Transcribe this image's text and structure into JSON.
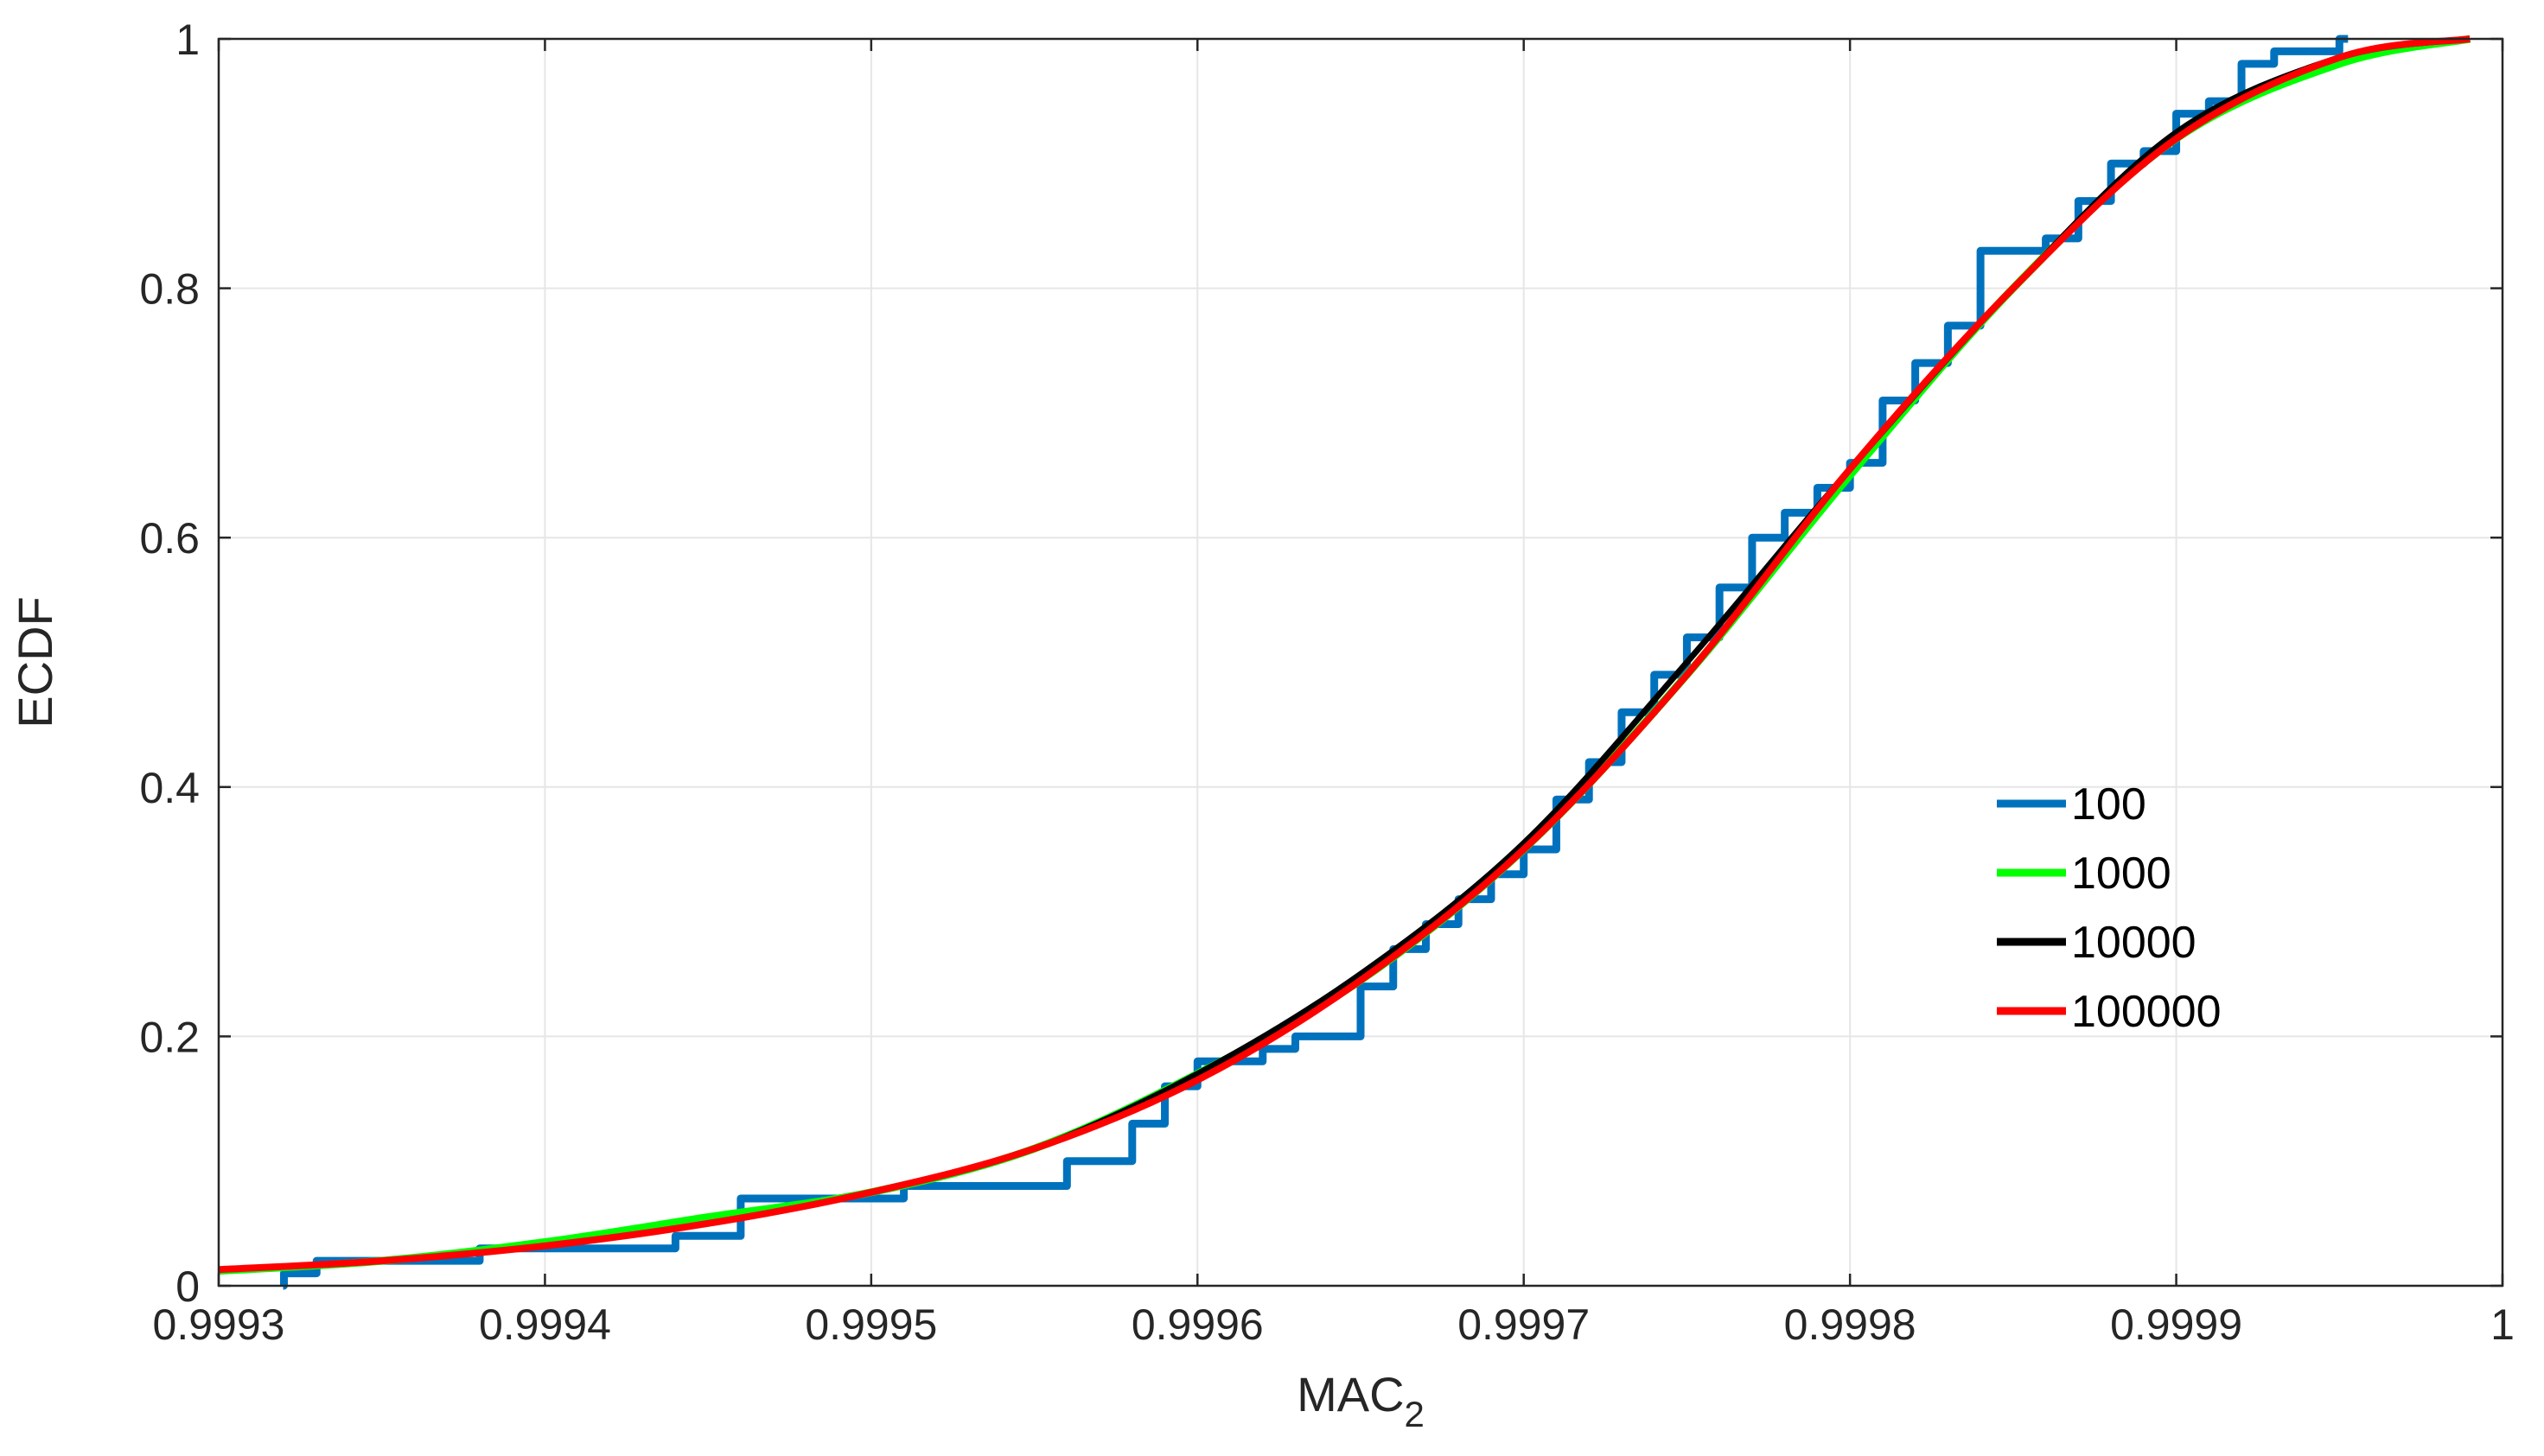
{
  "chart_data": {
    "type": "line",
    "title": "",
    "xlabel": "MAC",
    "xlabel_subscript": "2",
    "ylabel": "ECDF",
    "xlim": [
      0.9993,
      1.0
    ],
    "ylim": [
      0,
      1
    ],
    "grid": true,
    "legend_position": "center-right",
    "x_tick_labels": [
      "0.9993",
      "0.9994",
      "0.9995",
      "0.9996",
      "0.9997",
      "0.9998",
      "0.9999",
      "1"
    ],
    "x_ticks": [
      0.9993,
      0.9994,
      0.9995,
      0.9996,
      0.9997,
      0.9998,
      0.9999,
      1.0
    ],
    "y_tick_labels": [
      "0",
      "0.2",
      "0.4",
      "0.6",
      "0.8",
      "1"
    ],
    "y_ticks": [
      0,
      0.2,
      0.4,
      0.6,
      0.8,
      1.0
    ],
    "series": [
      {
        "name": "100",
        "color": "#0072BD",
        "step": true,
        "x": [
          0.99932,
          0.99933,
          0.99938,
          0.99944,
          0.99946,
          0.9995,
          0.99951,
          0.99956,
          0.99958,
          0.99959,
          0.9996,
          0.99962,
          0.99963,
          0.99965,
          0.99966,
          0.99967,
          0.99968,
          0.99969,
          0.9997,
          0.99971,
          0.99972,
          0.99973,
          0.99974,
          0.99975,
          0.99976,
          0.99977,
          0.99978,
          0.99979,
          0.9998,
          0.99981,
          0.99982,
          0.99983,
          0.99984,
          0.99985,
          0.99986,
          0.99987,
          0.99988,
          0.99989,
          0.9999,
          0.99991,
          0.99992,
          0.99993,
          0.99994,
          0.99995
        ],
        "y": [
          0.01,
          0.02,
          0.03,
          0.04,
          0.07,
          0.07,
          0.08,
          0.1,
          0.13,
          0.16,
          0.18,
          0.19,
          0.2,
          0.24,
          0.27,
          0.29,
          0.31,
          0.33,
          0.35,
          0.39,
          0.42,
          0.46,
          0.49,
          0.52,
          0.56,
          0.6,
          0.62,
          0.64,
          0.66,
          0.71,
          0.74,
          0.77,
          0.83,
          0.83,
          0.84,
          0.87,
          0.9,
          0.91,
          0.94,
          0.95,
          0.98,
          0.99,
          0.99,
          1.0
        ]
      },
      {
        "name": "1000",
        "color": "#00FF00",
        "step": false,
        "x": [
          0.9993,
          0.99935,
          0.9994,
          0.99945,
          0.9995,
          0.99955,
          0.9996,
          0.99965,
          0.9997,
          0.99975,
          0.9998,
          0.99985,
          0.9999,
          0.99995,
          0.99999
        ],
        "y": [
          0.012,
          0.02,
          0.035,
          0.055,
          0.075,
          0.11,
          0.17,
          0.245,
          0.35,
          0.49,
          0.65,
          0.8,
          0.92,
          0.98,
          1.0
        ]
      },
      {
        "name": "10000",
        "color": "#000000",
        "step": false,
        "x": [
          0.9993,
          0.99935,
          0.9994,
          0.99945,
          0.9995,
          0.99955,
          0.9996,
          0.99965,
          0.9997,
          0.99975,
          0.9998,
          0.99985,
          0.9999,
          0.99995,
          0.99999
        ],
        "y": [
          0.013,
          0.02,
          0.032,
          0.05,
          0.075,
          0.11,
          0.17,
          0.25,
          0.355,
          0.5,
          0.655,
          0.8,
          0.925,
          0.985,
          1.0
        ]
      },
      {
        "name": "100000",
        "color": "#FF0000",
        "step": false,
        "x": [
          0.9993,
          0.99935,
          0.9994,
          0.99945,
          0.9995,
          0.99955,
          0.9996,
          0.99965,
          0.9997,
          0.99975,
          0.9998,
          0.99985,
          0.9999,
          0.99995,
          0.99999
        ],
        "y": [
          0.013,
          0.02,
          0.032,
          0.05,
          0.075,
          0.11,
          0.165,
          0.245,
          0.35,
          0.49,
          0.655,
          0.8,
          0.92,
          0.985,
          1.0
        ]
      }
    ]
  }
}
